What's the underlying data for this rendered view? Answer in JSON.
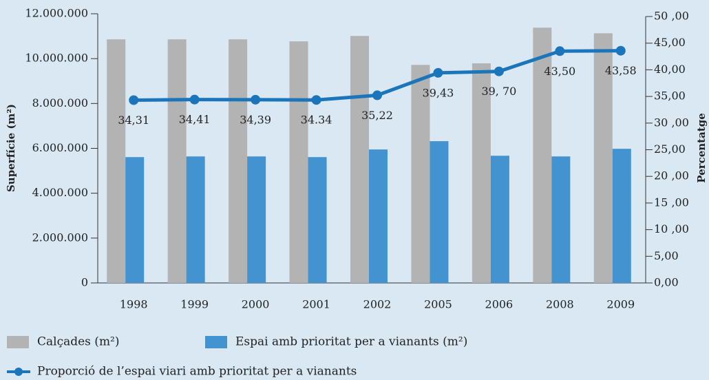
{
  "chart_data": {
    "type": "bar",
    "categories": [
      "1998",
      "1999",
      "2000",
      "2001",
      "2002",
      "2005",
      "2006",
      "2008",
      "2009"
    ],
    "ylabel": "Superfície (m²)",
    "y2label": "Percentatge",
    "ylim": [
      0,
      12000000
    ],
    "yticks": [
      0,
      {
        "value": 2000000,
        "label": "2.000.000"
      },
      {
        "value": 4000000,
        "label": "4.000.000"
      },
      {
        "value": 6000000,
        "label": "6.000.000"
      },
      {
        "value": 8000000,
        "label": "8.000.000"
      },
      {
        "value": 10000000,
        "label": "10.000.000"
      },
      {
        "value": 12000000,
        "label": "12.000.000"
      }
    ],
    "y2lim": [
      0,
      50
    ],
    "y2ticks": [
      {
        "value": 0,
        "label": "0,00"
      },
      {
        "value": 5,
        "label": "5,00"
      },
      {
        "value": 10,
        "label": "10 ,00"
      },
      {
        "value": 15,
        "label": "15 ,00"
      },
      {
        "value": 20,
        "label": "20 ,00"
      },
      {
        "value": 25,
        "label": "25,00"
      },
      {
        "value": 30,
        "label": "30 ,00"
      },
      {
        "value": 35,
        "label": "35,00"
      },
      {
        "value": 40,
        "label": "40,00"
      },
      {
        "value": 45,
        "label": "45,00"
      },
      {
        "value": 50,
        "label": "50 ,00"
      }
    ],
    "series": [
      {
        "name": "Calçades (m²)",
        "color": "#b3b3b3",
        "values": [
          10860000,
          10860000,
          10860000,
          10770000,
          11010000,
          9720000,
          9790000,
          11380000,
          11130000
        ]
      },
      {
        "name": "Espai amb prioritat per a vianants (m²)",
        "color": "#4393d0",
        "values": [
          5610000,
          5640000,
          5640000,
          5610000,
          5950000,
          6320000,
          5670000,
          5640000,
          5980000
        ]
      },
      {
        "name": "Proporció de l’espai viari amb prioritat per a vianants",
        "color": "#1b75bb",
        "type": "line",
        "axis": "y2",
        "values": [
          34.31,
          34.41,
          34.39,
          34.34,
          35.22,
          39.43,
          39.7,
          43.5,
          43.58
        ],
        "value_labels": [
          "34,31",
          "34,41",
          "34,39",
          "34.34",
          "35,22",
          "39,43",
          "39, 70",
          "43,50",
          "43,58"
        ]
      }
    ]
  }
}
